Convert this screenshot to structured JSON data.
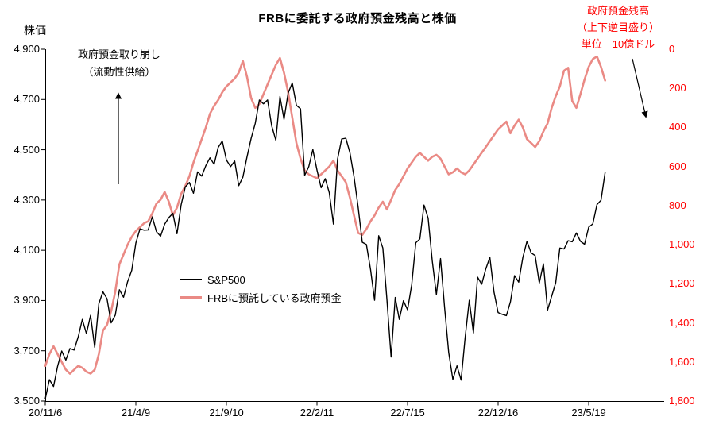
{
  "title": "FRBに委託する政府預金残高と株価",
  "left_axis_title": "株価",
  "right_axis_header": [
    "政府預金残高",
    "（上下逆目盛り）",
    "単位　10億ドル"
  ],
  "annotation": {
    "line1": "政府預金取り崩し",
    "line2": "（流動性供給）"
  },
  "legend": [
    {
      "label": "S&P500",
      "color": "#000000"
    },
    {
      "label": "FRBに預託している政府預金",
      "color": "#ea8a85"
    }
  ],
  "chart_data": {
    "type": "line",
    "title": "FRBに委託する政府預金残高と株価",
    "x_unit": "week (weekly data, Nov 2020 - Jun 2023)",
    "x_tick_labels": [
      "20/11/6",
      "21/4/9",
      "21/9/10",
      "22/2/11",
      "22/7/15",
      "22/12/16",
      "23/5/19"
    ],
    "x_tick_indices": [
      0,
      22,
      44,
      66,
      88,
      110,
      132
    ],
    "left_axis": {
      "title": "株価",
      "min": 3500,
      "max": 4900,
      "tick_step": 200,
      "tick_labels": [
        "4,900",
        "4,700",
        "4,500",
        "4,300",
        "4,100",
        "3,900",
        "3,700",
        "3,500"
      ]
    },
    "right_axis": {
      "title": "政府預金残高（上下逆目盛り）単位 10億ドル",
      "min": 0,
      "max": 1800,
      "tick_step": 200,
      "inverted": true,
      "color": "#ff0000",
      "tick_labels": [
        "0",
        "200",
        "400",
        "600",
        "800",
        "1,000",
        "1,200",
        "1,400",
        "1,600",
        "1,800"
      ]
    },
    "grid": false,
    "legend_position": "inside-center-left",
    "series": [
      {
        "name": "S&P500",
        "axis": "left",
        "color": "#000000",
        "values": [
          3509,
          3585,
          3558,
          3638,
          3699,
          3663,
          3709,
          3703,
          3756,
          3825,
          3768,
          3841,
          3714,
          3887,
          3935,
          3907,
          3811,
          3842,
          3943,
          3913,
          3975,
          4020,
          4129,
          4185,
          4180,
          4181,
          4233,
          4174,
          4156,
          4204,
          4230,
          4247,
          4166,
          4281,
          4352,
          4370,
          4327,
          4412,
          4395,
          4437,
          4468,
          4442,
          4509,
          4535,
          4459,
          4433,
          4455,
          4357,
          4391,
          4471,
          4545,
          4605,
          4698,
          4683,
          4698,
          4595,
          4538,
          4712,
          4621,
          4726,
          4766,
          4677,
          4663,
          4398,
          4432,
          4501,
          4419,
          4349,
          4385,
          4329,
          4204,
          4463,
          4543,
          4546,
          4488,
          4393,
          4272,
          4132,
          4123,
          4024,
          3901,
          4158,
          4109,
          3901,
          3675,
          3912,
          3825,
          3899,
          3863,
          3962,
          4130,
          4145,
          4280,
          4228,
          4058,
          3924,
          4067,
          3873,
          3693,
          3586,
          3640,
          3583,
          3753,
          3901,
          3771,
          3993,
          3965,
          4026,
          4072,
          3934,
          3852,
          3845,
          3840,
          3895,
          3999,
          3973,
          4071,
          4136,
          4090,
          4079,
          3970,
          4046,
          3862,
          3917,
          3971,
          4109,
          4105,
          4138,
          4134,
          4169,
          4136,
          4124,
          4192,
          4205,
          4282,
          4299,
          4410
        ]
      },
      {
        "name": "FRBに預託している政府預金",
        "axis": "right",
        "color": "#ea8a85",
        "values": [
          1620,
          1560,
          1520,
          1560,
          1600,
          1640,
          1660,
          1640,
          1620,
          1630,
          1650,
          1660,
          1640,
          1560,
          1440,
          1410,
          1340,
          1240,
          1100,
          1050,
          1000,
          960,
          930,
          910,
          890,
          880,
          840,
          790,
          770,
          730,
          780,
          850,
          810,
          740,
          700,
          650,
          580,
          520,
          460,
          400,
          330,
          290,
          260,
          220,
          190,
          170,
          150,
          120,
          60,
          140,
          250,
          300,
          280,
          230,
          180,
          130,
          80,
          45,
          120,
          220,
          350,
          480,
          560,
          620,
          640,
          650,
          660,
          640,
          620,
          600,
          570,
          620,
          650,
          680,
          760,
          850,
          940,
          950,
          920,
          880,
          850,
          810,
          780,
          820,
          770,
          720,
          690,
          650,
          610,
          580,
          550,
          530,
          550,
          570,
          550,
          540,
          560,
          600,
          640,
          630,
          610,
          630,
          640,
          620,
          590,
          560,
          530,
          500,
          470,
          440,
          410,
          390,
          370,
          430,
          390,
          360,
          400,
          460,
          480,
          500,
          470,
          420,
          380,
          300,
          240,
          190,
          110,
          95,
          265,
          300,
          230,
          155,
          90,
          50,
          37,
          90,
          160
        ]
      }
    ]
  }
}
